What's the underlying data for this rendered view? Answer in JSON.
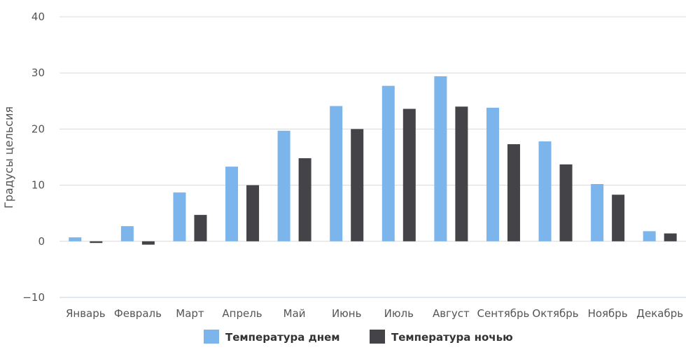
{
  "chart_data": {
    "type": "bar",
    "ylabel": "Градусы цельсия",
    "ylim": [
      -10,
      40
    ],
    "yticks": [
      "40",
      "30",
      "20",
      "10",
      "0",
      "−10"
    ],
    "ytick_values": [
      40,
      30,
      20,
      10,
      0,
      -10
    ],
    "categories": [
      "Январь",
      "Февраль",
      "Март",
      "Апрель",
      "Май",
      "Июнь",
      "Июль",
      "Август",
      "Сентябрь",
      "Октябрь",
      "Ноябрь",
      "Декабрь"
    ],
    "series": [
      {
        "name": "Температура днем",
        "color": "#7cb5ec",
        "values": [
          0.7,
          2.7,
          8.7,
          13.3,
          19.7,
          24.1,
          27.7,
          29.4,
          23.8,
          17.8,
          10.2,
          1.8
        ]
      },
      {
        "name": "Температура ночью",
        "color": "#434348",
        "values": [
          -0.3,
          -0.6,
          4.7,
          10.0,
          14.8,
          20.0,
          23.6,
          24.0,
          17.3,
          13.7,
          8.3,
          1.4
        ]
      }
    ],
    "grid": true,
    "legend_position": "bottom-center"
  }
}
